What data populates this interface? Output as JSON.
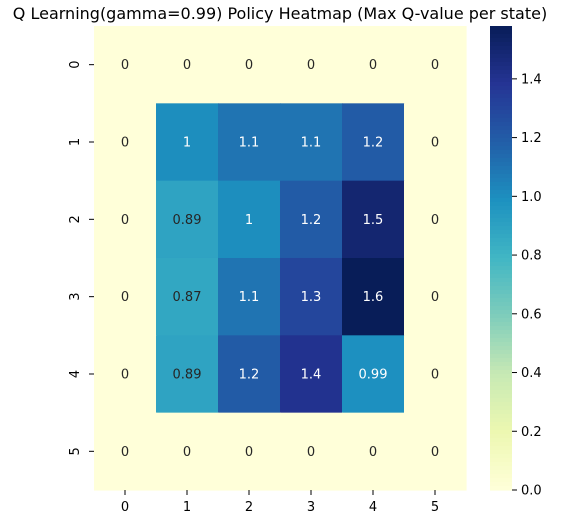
{
  "chart_data": {
    "type": "heatmap",
    "title": "Q Learning(gamma=0.99) Policy Heatmap (Max Q-value per state)",
    "xlabel": "",
    "ylabel": "",
    "x_categories": [
      "0",
      "1",
      "2",
      "3",
      "4",
      "5"
    ],
    "y_categories": [
      "0",
      "1",
      "2",
      "3",
      "4",
      "5"
    ],
    "values": [
      [
        0,
        0,
        0,
        0,
        0,
        0
      ],
      [
        0,
        1.0,
        1.1,
        1.1,
        1.2,
        0
      ],
      [
        0,
        0.89,
        1.0,
        1.2,
        1.5,
        0
      ],
      [
        0,
        0.87,
        1.1,
        1.3,
        1.6,
        0
      ],
      [
        0,
        0.89,
        1.2,
        1.4,
        0.99,
        0
      ],
      [
        0,
        0,
        0,
        0,
        0,
        0
      ]
    ],
    "cell_labels": [
      [
        "0",
        "0",
        "0",
        "0",
        "0",
        "0"
      ],
      [
        "0",
        "1",
        "1.1",
        "1.1",
        "1.2",
        "0"
      ],
      [
        "0",
        "0.89",
        "1",
        "1.2",
        "1.5",
        "0"
      ],
      [
        "0",
        "0.87",
        "1.1",
        "1.3",
        "1.6",
        "0"
      ],
      [
        "0",
        "0.89",
        "1.2",
        "1.4",
        "0.99",
        "0"
      ],
      [
        "0",
        "0",
        "0",
        "0",
        "0",
        "0"
      ]
    ],
    "colorbar": {
      "min": 0.0,
      "max": 1.58,
      "ticks": [
        0.0,
        0.2,
        0.4,
        0.6,
        0.8,
        1.0,
        1.2,
        1.4
      ],
      "tick_labels": [
        "0.0",
        "0.2",
        "0.4",
        "0.6",
        "0.8",
        "1.0",
        "1.2",
        "1.4"
      ]
    },
    "colormap": "YlGnBu",
    "grid": false
  }
}
